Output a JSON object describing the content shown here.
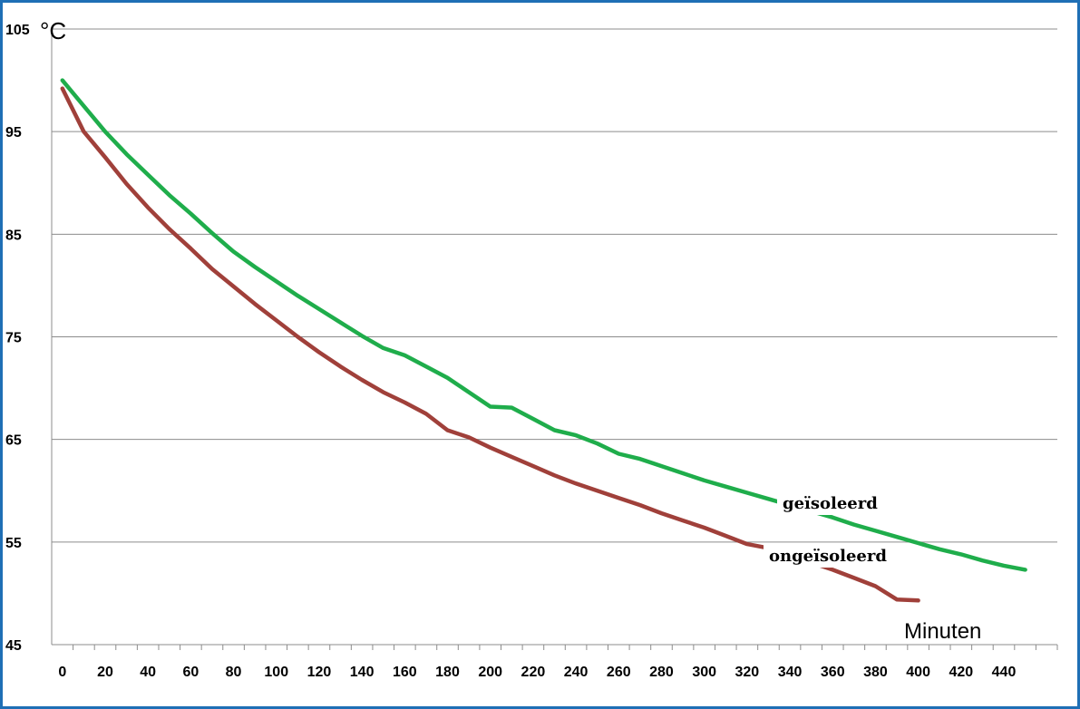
{
  "chart_data": {
    "type": "line",
    "ylabel": "°C",
    "xlabel": "Minuten",
    "ylim": [
      45,
      105
    ],
    "yticks": [
      45,
      55,
      65,
      75,
      85,
      95,
      105
    ],
    "xlim": [
      -5,
      465
    ],
    "xticks": [
      0,
      20,
      40,
      60,
      80,
      100,
      120,
      140,
      160,
      180,
      200,
      220,
      240,
      260,
      280,
      300,
      320,
      340,
      360,
      380,
      400,
      420,
      440
    ],
    "grid": "horizontal",
    "series": [
      {
        "name": "geïsoleerd",
        "color": "#1fad4b",
        "x": [
          0,
          10,
          20,
          30,
          40,
          50,
          60,
          70,
          80,
          90,
          100,
          110,
          120,
          130,
          140,
          150,
          160,
          170,
          180,
          190,
          200,
          210,
          220,
          230,
          240,
          250,
          260,
          270,
          280,
          290,
          300,
          310,
          320,
          330,
          340,
          350,
          360,
          370,
          380,
          390,
          400,
          410,
          420,
          430,
          440,
          450
        ],
        "values": [
          100.0,
          97.5,
          95.0,
          92.8,
          90.8,
          88.8,
          87.0,
          85.1,
          83.3,
          81.8,
          80.4,
          79.0,
          77.7,
          76.4,
          75.1,
          73.9,
          73.2,
          72.1,
          71.0,
          69.6,
          68.2,
          68.1,
          67.0,
          65.9,
          65.4,
          64.6,
          63.6,
          63.1,
          62.4,
          61.7,
          61.0,
          60.4,
          59.8,
          59.2,
          58.6,
          58.0,
          57.4,
          56.7,
          56.1,
          55.5,
          54.9,
          54.3,
          53.8,
          53.2,
          52.7,
          52.3
        ]
      },
      {
        "name": "ongeïsoleerd",
        "color": "#a0403a",
        "x": [
          0,
          10,
          20,
          30,
          40,
          50,
          60,
          70,
          80,
          90,
          100,
          110,
          120,
          130,
          140,
          150,
          160,
          170,
          180,
          190,
          200,
          210,
          220,
          230,
          240,
          250,
          260,
          270,
          280,
          290,
          300,
          310,
          320,
          330,
          340,
          350,
          360,
          370,
          380,
          390,
          400
        ],
        "values": [
          99.2,
          95.0,
          92.5,
          89.9,
          87.6,
          85.5,
          83.6,
          81.6,
          79.9,
          78.2,
          76.6,
          75.0,
          73.5,
          72.1,
          70.8,
          69.6,
          68.6,
          67.5,
          65.9,
          65.2,
          64.2,
          63.3,
          62.4,
          61.5,
          60.7,
          60.0,
          59.3,
          58.6,
          57.8,
          57.1,
          56.4,
          55.6,
          54.8,
          54.4,
          53.7,
          53.0,
          52.3,
          51.5,
          50.7,
          49.4,
          49.3
        ]
      }
    ],
    "annotations": [
      "geïsoleerd",
      "ongeïsoleerd"
    ]
  }
}
